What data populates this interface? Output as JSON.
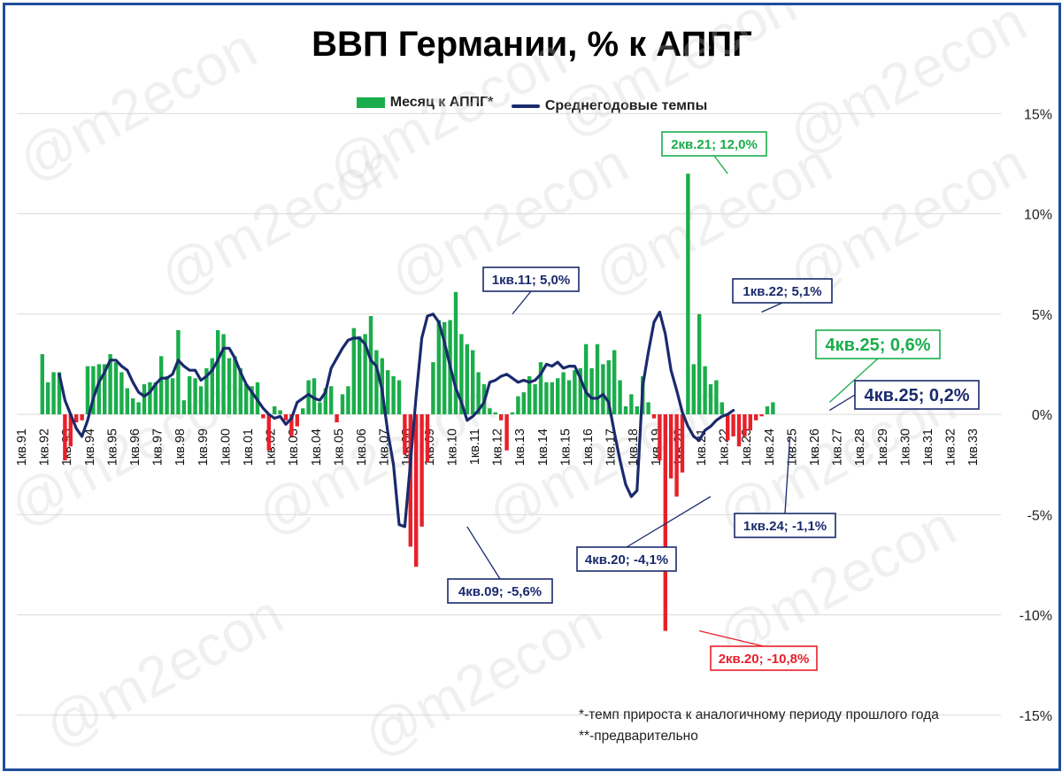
{
  "chart_data": {
    "type": "bar+line",
    "title": "ВВП Германии, % к АППГ",
    "legend": [
      "Месяц к АППГ*",
      "Среднегодовые темпы"
    ],
    "colors": {
      "positive": "#1aad4b",
      "negative": "#e8202a",
      "line": "#1a2a6c",
      "grid": "#d9d9d9"
    },
    "ylim": [
      -15,
      15
    ],
    "y_ticks": [
      "15%",
      "10%",
      "5%",
      "0%",
      "-5%",
      "-10%",
      "-15%"
    ],
    "x_tick_labels": [
      "1кв.91",
      "1кв.92",
      "1кв.93",
      "1кв.94",
      "1кв.95",
      "1кв.96",
      "1кв.97",
      "1кв.98",
      "1кв.99",
      "1кв.00",
      "1кв.01",
      "1кв.02",
      "1кв.03",
      "1кв.04",
      "1кв.05",
      "1кв.06",
      "1кв.07",
      "1кв.08",
      "1кв.09",
      "1кв.10",
      "1кв.11",
      "1кв.12",
      "1кв.13",
      "1кв.14",
      "1кв.15",
      "1кв.16",
      "1кв.17",
      "1кв.18",
      "1кв.19",
      "1кв.20",
      "1кв.21",
      "1кв.22",
      "1кв.23",
      "1кв.24",
      "1кв.25",
      "1кв.26",
      "1кв.27",
      "1кв.28",
      "1кв.29",
      "1кв.30",
      "1кв.31",
      "1кв.32",
      "1кв.33"
    ],
    "bars_start": "1кв.92",
    "bars": [
      3.0,
      1.6,
      2.1,
      2.1,
      -2.3,
      -1.6,
      -0.4,
      -0.3,
      2.4,
      2.4,
      2.5,
      2.5,
      3.0,
      2.6,
      2.1,
      1.3,
      0.8,
      0.6,
      1.5,
      1.6,
      1.6,
      2.9,
      1.9,
      1.8,
      4.2,
      0.7,
      1.9,
      1.8,
      1.4,
      2.3,
      2.8,
      4.2,
      4.0,
      2.8,
      2.9,
      2.3,
      1.5,
      1.4,
      1.6,
      -0.2,
      -1.8,
      0.4,
      0.2,
      -0.3,
      -1.1,
      -0.6,
      0.3,
      1.7,
      1.8,
      0.6,
      1.3,
      1.4,
      -0.4,
      1.0,
      1.4,
      4.3,
      3.9,
      4.0,
      4.9,
      3.2,
      2.8,
      2.2,
      1.9,
      1.7,
      -2.0,
      -6.6,
      -7.6,
      -5.6,
      -2.4,
      2.6,
      4.7,
      4.6,
      4.7,
      6.1,
      4.0,
      3.5,
      3.2,
      2.1,
      1.5,
      0.3,
      0.1,
      -0.3,
      -1.8,
      0.1,
      0.9,
      1.1,
      1.9,
      1.5,
      2.6,
      1.6,
      1.6,
      1.8,
      2.1,
      1.7,
      2.2,
      2.3,
      3.5,
      2.3,
      3.5,
      2.5,
      2.7,
      3.2,
      1.7,
      0.4,
      1.0,
      0.4,
      1.9,
      0.6,
      -0.2,
      -2.3,
      -10.8,
      -3.2,
      -4.1,
      -2.9,
      12.0,
      2.5,
      5.0,
      2.4,
      1.5,
      1.7,
      0.6,
      -1.3,
      -1.1,
      -1.6,
      -1.1,
      -0.8,
      -0.3,
      -0.1,
      0.4,
      0.6
    ],
    "line_start": "4кв.92",
    "line": [
      2.0,
      0.7,
      0.0,
      -0.7,
      -1.1,
      -0.3,
      0.8,
      1.6,
      2.1,
      2.7,
      2.7,
      2.4,
      2.2,
      1.6,
      1.1,
      0.9,
      1.1,
      1.5,
      1.8,
      1.8,
      2.0,
      2.7,
      2.4,
      2.2,
      2.2,
      1.7,
      1.9,
      2.2,
      2.7,
      3.3,
      3.3,
      2.8,
      2.1,
      1.5,
      1.1,
      0.7,
      0.3,
      0.0,
      -0.2,
      -0.1,
      -0.5,
      -0.2,
      0.6,
      0.8,
      1.0,
      0.8,
      0.7,
      1.1,
      2.3,
      2.8,
      3.3,
      3.7,
      3.8,
      3.8,
      3.5,
      2.7,
      2.4,
      1.2,
      -0.9,
      -2.5,
      -5.5,
      -5.6,
      -2.4,
      0.9,
      3.8,
      4.9,
      5.0,
      4.6,
      3.6,
      2.4,
      1.3,
      0.6,
      -0.3,
      -0.1,
      0.2,
      0.6,
      1.6,
      1.7,
      1.9,
      2.0,
      1.8,
      1.6,
      1.7,
      1.6,
      1.7,
      2.0,
      2.5,
      2.4,
      2.6,
      2.3,
      2.4,
      2.4,
      1.8,
      1.1,
      0.8,
      0.8,
      1.0,
      0.6,
      -0.9,
      -2.3,
      -3.5,
      -4.1,
      -3.8,
      1.4,
      3.1,
      4.6,
      5.1,
      4.0,
      2.2,
      1.2,
      0.1,
      -0.6,
      -1.1,
      -1.3,
      -0.8,
      -0.6,
      -0.3,
      -0.1,
      0.0,
      0.2
    ],
    "annotations": [
      {
        "label": "2кв.21; 12,0%",
        "color": "#1aad4b"
      },
      {
        "label": "1кв.11; 5,0%",
        "color": "#1a2a6c"
      },
      {
        "label": "1кв.22; 5,1%",
        "color": "#1a2a6c"
      },
      {
        "label": "4кв.25; 0,6%",
        "color": "#1aad4b"
      },
      {
        "label": "4кв.25; 0,2%",
        "color": "#1a2a6c"
      },
      {
        "label": "4кв.09; -5,6%",
        "color": "#1a2a6c"
      },
      {
        "label": "4кв.20; -4,1%",
        "color": "#1a2a6c"
      },
      {
        "label": "1кв.24; -1,1%",
        "color": "#1a2a6c"
      },
      {
        "label": "2кв.20; -10,8%",
        "color": "#e8202a"
      }
    ],
    "grid": true,
    "legend_position": "top",
    "y_axis_side": "right"
  },
  "footnotes": {
    "note1": "*-темп прироста к аналогичному периоду прошлого года",
    "note2": "**-предварительно"
  },
  "watermark": "@m2econ"
}
